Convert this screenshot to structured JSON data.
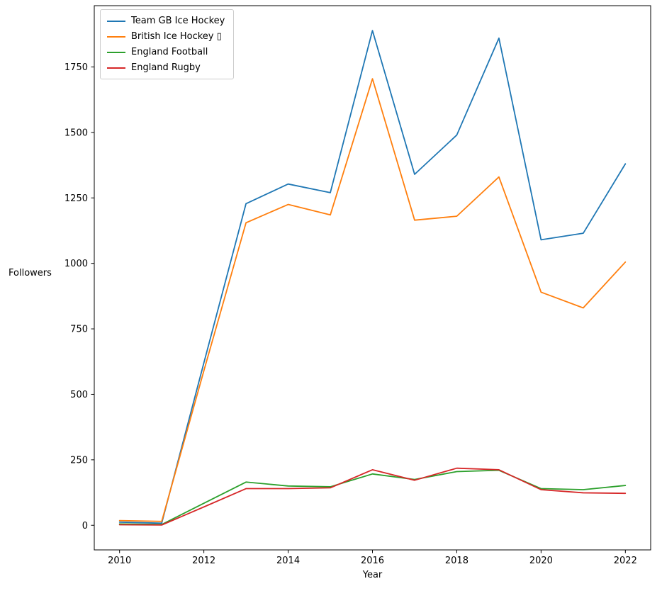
{
  "figure": {
    "background_color": "#ffffff",
    "text_color": "#000000"
  },
  "chart_data": {
    "type": "line",
    "title": "",
    "xlabel": "Year",
    "ylabel": "Followers",
    "x": [
      2010,
      2011,
      2012,
      2013,
      2014,
      2015,
      2016,
      2017,
      2018,
      2019,
      2020,
      2021,
      2022
    ],
    "series": [
      {
        "name": "Team GB Ice Hockey",
        "color": "#1f77b4",
        "values": [
          12,
          8,
          620,
          1228,
          1303,
          1270,
          1889,
          1340,
          1490,
          1860,
          1090,
          1115,
          1380
        ]
      },
      {
        "name": "British Ice Hockey ▯",
        "color": "#ff7f0e",
        "values": [
          18,
          15,
          590,
          1155,
          1225,
          1185,
          1705,
          1165,
          1180,
          1330,
          890,
          830,
          1005
        ]
      },
      {
        "name": "England Football",
        "color": "#2ca02c",
        "values": [
          5,
          3,
          84,
          165,
          150,
          147,
          196,
          175,
          205,
          210,
          140,
          136,
          152
        ]
      },
      {
        "name": "England Rugby",
        "color": "#d62728",
        "values": [
          2,
          1,
          70,
          140,
          140,
          143,
          212,
          172,
          218,
          212,
          136,
          124,
          122
        ]
      }
    ],
    "xticks": [
      2010,
      2012,
      2014,
      2016,
      2018,
      2020,
      2022
    ],
    "yticks": [
      0,
      250,
      500,
      750,
      1000,
      1250,
      1500,
      1750
    ],
    "xlim": [
      2009.4,
      2022.6
    ],
    "ylim": [
      -94,
      1984
    ],
    "grid": false,
    "legend_position": "top-left"
  }
}
